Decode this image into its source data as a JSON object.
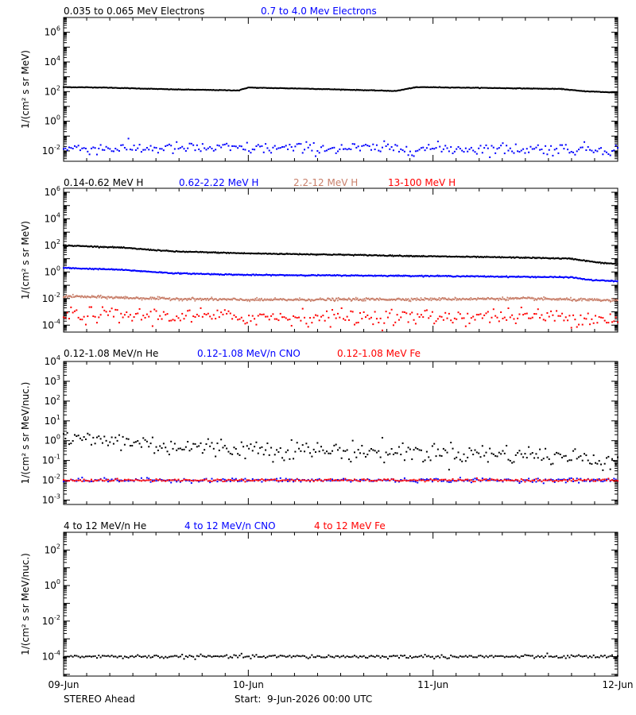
{
  "chart_data": [
    {
      "type": "scatter",
      "yscale": "log",
      "ylim": [
        0.002,
        10000000
      ],
      "yticks": [
        {
          "v": 0.01,
          "e": "-2"
        },
        {
          "v": 1,
          "e": "0"
        },
        {
          "v": 100,
          "e": "2"
        },
        {
          "v": 10000,
          "e": "4"
        },
        {
          "v": 1000000,
          "e": "6"
        }
      ],
      "ylabel": "1/(cm² s sr MeV)",
      "series": [
        {
          "name": "0.035 to 0.065 MeV Electrons",
          "color": "#000000",
          "style": "line",
          "noise": 0.01,
          "x": [
            0,
            0.2,
            0.6,
            0.95,
            1.0,
            1.05,
            1.3,
            1.8,
            1.9,
            1.95,
            2.4,
            2.7,
            2.8,
            2.95,
            3.0
          ],
          "y": [
            200,
            190,
            140,
            120,
            190,
            180,
            160,
            110,
            190,
            200,
            170,
            150,
            110,
            90,
            90
          ]
        },
        {
          "name": "0.7 to 4.0 Mev Electrons",
          "color": "#0000ff",
          "style": "dots",
          "noise": 0.2,
          "x": [
            0,
            1.5,
            3.0
          ],
          "y": [
            0.015,
            0.015,
            0.013
          ]
        }
      ]
    },
    {
      "type": "scatter",
      "yscale": "log",
      "ylim": [
        3e-05,
        2000000
      ],
      "yticks": [
        {
          "v": 0.0001,
          "e": "-4"
        },
        {
          "v": 0.01,
          "e": "-2"
        },
        {
          "v": 1,
          "e": "0"
        },
        {
          "v": 100,
          "e": "2"
        },
        {
          "v": 10000,
          "e": "4"
        },
        {
          "v": 1000000,
          "e": "6"
        }
      ],
      "ylabel": "1/(cm² s sr MeV)",
      "series": [
        {
          "name": "0.14-0.62 MeV H",
          "color": "#000000",
          "style": "line",
          "noise": 0.02,
          "x": [
            0,
            0.3,
            0.6,
            1.0,
            1.5,
            2.0,
            2.5,
            2.75,
            2.9,
            3.0
          ],
          "y": [
            100,
            70,
            35,
            25,
            20,
            15,
            12,
            10,
            5,
            4
          ]
        },
        {
          "name": "0.62-2.22 MeV H",
          "color": "#0000ff",
          "style": "line",
          "noise": 0.02,
          "x": [
            0,
            0.3,
            0.6,
            1.0,
            2.0,
            2.75,
            2.85,
            3.0
          ],
          "y": [
            2,
            1.5,
            0.8,
            0.6,
            0.5,
            0.4,
            0.25,
            0.2
          ]
        },
        {
          "name": "2.2-12 MeV H",
          "color": "#c87f6a",
          "style": "line",
          "noise": 0.05,
          "x": [
            0,
            0.5,
            1.0,
            2.0,
            2.5,
            3.0
          ],
          "y": [
            0.015,
            0.01,
            0.008,
            0.009,
            0.01,
            0.007
          ]
        },
        {
          "name": "13-100 MeV H",
          "color": "#ff0000",
          "style": "dots",
          "noise": 0.3,
          "x": [
            0,
            0.5,
            1.0,
            2.0,
            2.5,
            3.0
          ],
          "y": [
            0.0006,
            0.0005,
            0.0004,
            0.0004,
            0.0005,
            0.0003
          ]
        }
      ]
    },
    {
      "type": "scatter",
      "yscale": "log",
      "ylim": [
        0.0006,
        10000
      ],
      "yticks": [
        {
          "v": 0.001,
          "e": "-3"
        },
        {
          "v": 0.01,
          "e": "-2"
        },
        {
          "v": 0.1,
          "e": "-1"
        },
        {
          "v": 1,
          "e": "0"
        },
        {
          "v": 10,
          "e": "1"
        },
        {
          "v": 100,
          "e": "2"
        },
        {
          "v": 1000,
          "e": "3"
        },
        {
          "v": 10000,
          "e": "4"
        }
      ],
      "ylabel": "1/(cm² s sr MeV/nuc.)",
      "series": [
        {
          "name": "0.12-1.08 MeV/n He",
          "color": "#000000",
          "style": "dots",
          "noise": 0.25,
          "x": [
            0,
            0.3,
            0.6,
            1.0,
            1.5,
            2.0,
            2.5,
            3.0
          ],
          "y": [
            1.2,
            1.0,
            0.5,
            0.4,
            0.3,
            0.25,
            0.2,
            0.1
          ]
        },
        {
          "name": "0.12-1.08 MeV/n CNO",
          "color": "#0000ff",
          "style": "dots",
          "noise": 0.05,
          "x": [
            0,
            3.0
          ],
          "y": [
            0.01,
            0.01
          ]
        },
        {
          "name": "0.12-1.08 MeV Fe",
          "color": "#ff0000",
          "style": "dots",
          "noise": 0.03,
          "x": [
            0,
            3.0
          ],
          "y": [
            0.01,
            0.01
          ]
        }
      ]
    },
    {
      "type": "scatter",
      "yscale": "log",
      "ylim": [
        8e-06,
        1000
      ],
      "yticks": [
        {
          "v": 0.0001,
          "e": "-4"
        },
        {
          "v": 0.01,
          "e": "-2"
        },
        {
          "v": 1,
          "e": "0"
        },
        {
          "v": 100,
          "e": "2"
        }
      ],
      "ylabel": "1/(cm² s sr MeV/nuc.)",
      "series": [
        {
          "name": "4 to 12 MeV/n He",
          "color": "#000000",
          "style": "dots",
          "noise": 0.05,
          "x": [
            0,
            3.0
          ],
          "y": [
            0.0001,
            0.0001
          ]
        },
        {
          "name": "4 to 12 MeV/n CNO",
          "color": "#0000ff",
          "style": "dots",
          "noise": 0.0,
          "x": [],
          "y": []
        },
        {
          "name": "4 to 12 MeV Fe",
          "color": "#ff0000",
          "style": "dots",
          "noise": 0.0,
          "x": [],
          "y": []
        }
      ]
    }
  ],
  "x_axis": {
    "categories": [
      "09-Jun",
      "10-Jun",
      "11-Jun",
      "12-Jun"
    ],
    "values": [
      0,
      1,
      2,
      3
    ],
    "xlim": [
      0,
      3
    ]
  },
  "footer": {
    "spacecraft": "STEREO Ahead",
    "start": "Start:  9-Jun-2026 00:00 UTC"
  }
}
